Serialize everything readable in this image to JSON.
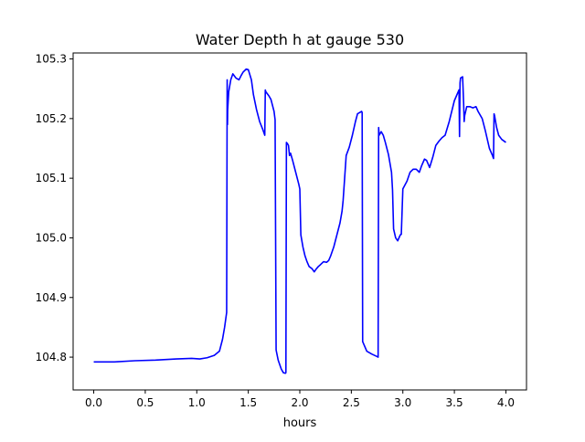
{
  "chart_data": {
    "type": "line",
    "title": "Water Depth h at gauge 530",
    "xlabel": "hours",
    "ylabel": "",
    "xlim": [
      -0.2,
      4.2
    ],
    "ylim": [
      104.745,
      105.31
    ],
    "xticks": [
      0.0,
      0.5,
      1.0,
      1.5,
      2.0,
      2.5,
      3.0,
      3.5,
      4.0
    ],
    "xtick_labels": [
      "0.0",
      "0.5",
      "1.0",
      "1.5",
      "2.0",
      "2.5",
      "3.0",
      "3.5",
      "4.0"
    ],
    "yticks": [
      104.8,
      104.9,
      105.0,
      105.1,
      105.2,
      105.3
    ],
    "ytick_labels": [
      "104.8",
      "104.9",
      "105.0",
      "105.1",
      "105.2",
      "105.3"
    ],
    "grid": false,
    "line_color": "#0000ff",
    "series": [
      {
        "x": [
          0.0,
          0.2,
          0.4,
          0.6,
          0.8,
          0.95,
          1.03,
          1.1,
          1.17,
          1.22,
          1.25,
          1.27,
          1.29,
          1.295,
          1.298,
          1.3,
          1.31,
          1.33,
          1.35,
          1.38,
          1.41,
          1.43,
          1.45,
          1.48,
          1.5,
          1.53,
          1.55,
          1.58,
          1.61,
          1.64,
          1.66,
          1.665,
          1.67,
          1.7,
          1.72,
          1.75,
          1.76,
          1.77,
          1.79,
          1.82,
          1.84,
          1.86,
          1.865,
          1.87,
          1.88,
          1.89,
          1.9,
          1.91,
          1.93,
          1.96,
          1.99,
          2.0,
          2.01,
          2.03,
          2.05,
          2.07,
          2.09,
          2.12,
          2.14,
          2.16,
          2.18,
          2.2,
          2.23,
          2.26,
          2.28,
          2.3,
          2.33,
          2.36,
          2.39,
          2.41,
          2.42,
          2.45,
          2.48,
          2.51,
          2.54,
          2.56,
          2.58,
          2.6,
          2.605,
          2.61,
          2.65,
          2.7,
          2.75,
          2.76,
          2.765,
          2.77,
          2.79,
          2.81,
          2.83,
          2.86,
          2.89,
          2.9,
          2.91,
          2.93,
          2.95,
          2.97,
          2.98,
          2.985,
          3.0,
          3.04,
          3.07,
          3.1,
          3.13,
          3.16,
          3.18,
          3.21,
          3.23,
          3.26,
          3.29,
          3.32,
          3.35,
          3.38,
          3.41,
          3.45,
          3.5,
          3.545,
          3.55,
          3.555,
          3.56,
          3.58,
          3.59,
          3.595,
          3.6,
          3.62,
          3.65,
          3.68,
          3.71,
          3.73,
          3.77,
          3.8,
          3.84,
          3.87,
          3.88,
          3.885,
          3.89,
          3.91,
          3.93,
          3.96,
          4.0
        ],
        "y": [
          104.792,
          104.792,
          104.794,
          104.795,
          104.797,
          104.798,
          104.797,
          104.799,
          104.803,
          104.81,
          104.83,
          104.85,
          104.875,
          105.265,
          105.19,
          105.215,
          105.245,
          105.265,
          105.275,
          105.268,
          105.265,
          105.272,
          105.278,
          105.283,
          105.282,
          105.265,
          105.24,
          105.215,
          105.195,
          105.182,
          105.172,
          105.248,
          105.245,
          105.238,
          105.232,
          105.212,
          105.198,
          104.812,
          104.795,
          104.78,
          104.774,
          104.773,
          104.774,
          105.16,
          105.158,
          105.155,
          105.138,
          105.142,
          105.13,
          105.11,
          105.09,
          105.082,
          105.005,
          104.985,
          104.97,
          104.96,
          104.952,
          104.948,
          104.943,
          104.948,
          104.952,
          104.955,
          104.96,
          104.959,
          104.962,
          104.97,
          104.985,
          105.005,
          105.025,
          105.045,
          105.062,
          105.138,
          105.152,
          105.172,
          105.195,
          105.208,
          105.21,
          105.212,
          105.21,
          104.826,
          104.81,
          104.805,
          104.801,
          104.8,
          105.185,
          105.172,
          105.178,
          105.172,
          105.16,
          105.14,
          105.11,
          105.08,
          105.015,
          105.0,
          104.995,
          105.003,
          105.006,
          105.006,
          105.082,
          105.095,
          105.11,
          105.115,
          105.115,
          105.11,
          105.12,
          105.132,
          105.13,
          105.118,
          105.135,
          105.155,
          105.162,
          105.168,
          105.172,
          105.195,
          105.23,
          105.248,
          105.17,
          105.26,
          105.268,
          105.27,
          105.225,
          105.195,
          105.205,
          105.22,
          105.22,
          105.218,
          105.22,
          105.212,
          105.2,
          105.18,
          105.15,
          105.138,
          105.133,
          105.208,
          105.205,
          105.185,
          105.172,
          105.165,
          105.16
        ]
      }
    ]
  }
}
